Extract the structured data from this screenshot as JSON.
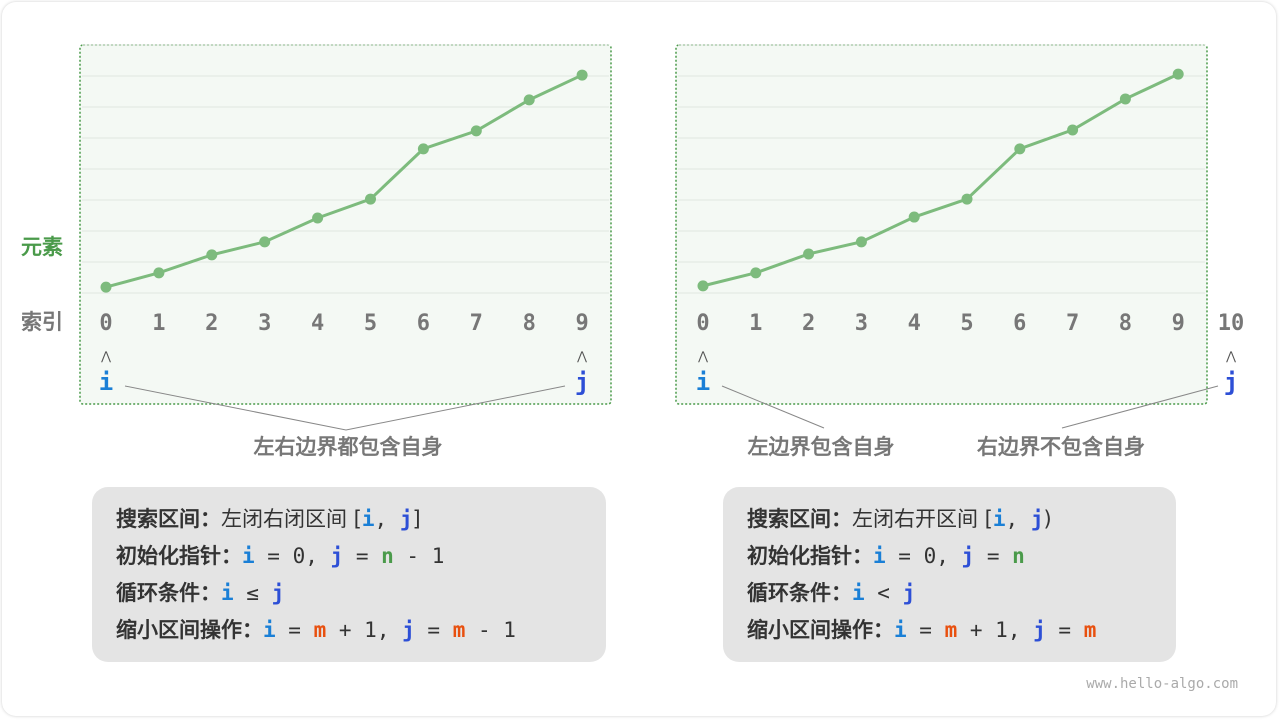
{
  "labels": {
    "element": "元素",
    "index": "索引"
  },
  "left": {
    "indices": [
      "0",
      "1",
      "2",
      "3",
      "4",
      "5",
      "6",
      "7",
      "8",
      "9"
    ],
    "values": [
      0.19,
      0.65,
      1.23,
      1.65,
      2.42,
      3.03,
      4.65,
      5.23,
      6.23,
      7.03
    ],
    "i_label": "i",
    "j_label": "j",
    "i_at": 0,
    "j_at": 9,
    "caption": "左右边界都包含自身"
  },
  "right": {
    "indices": [
      "0",
      "1",
      "2",
      "3",
      "4",
      "5",
      "6",
      "7",
      "8",
      "9",
      "10"
    ],
    "values": [
      0.23,
      0.65,
      1.26,
      1.65,
      2.45,
      3.03,
      4.65,
      5.26,
      6.26,
      7.06
    ],
    "i_label": "i",
    "j_label": "j",
    "i_at": 0,
    "j_at": 10,
    "caption_left": "左边界包含自身",
    "caption_right": "右边界不包含自身"
  },
  "box_left": {
    "l1_label": "搜索区间：",
    "l1_text": "左闭右闭区间 [",
    "l1_i": "i",
    "l1_sep": ", ",
    "l1_j": "j",
    "l1_end": "]",
    "l2_label": "初始化指针：",
    "l2_i": "i",
    "l2_a": " = 0, ",
    "l2_j": "j",
    "l2_b": " = ",
    "l2_n": "n",
    "l2_c": " - 1",
    "l3_label": "循环条件：",
    "l3_i": "i",
    "l3_op": " ≤ ",
    "l3_j": "j",
    "l4_label": "缩小区间操作：",
    "l4_i": "i",
    "l4_a": " = ",
    "l4_m": "m",
    "l4_b": " + 1, ",
    "l4_j": "j",
    "l4_c": " = ",
    "l4_m2": "m",
    "l4_d": " - 1"
  },
  "box_right": {
    "l1_label": "搜索区间：",
    "l1_text": "左闭右开区间 [",
    "l1_i": "i",
    "l1_sep": ", ",
    "l1_j": "j",
    "l1_end": ")",
    "l2_label": "初始化指针：",
    "l2_i": "i",
    "l2_a": " = 0, ",
    "l2_j": "j",
    "l2_b": " = ",
    "l2_n": "n",
    "l3_label": "循环条件：",
    "l3_i": "i",
    "l3_op": " < ",
    "l3_j": "j",
    "l4_label": "缩小区间操作：",
    "l4_i": "i",
    "l4_a": " = ",
    "l4_m": "m",
    "l4_b": " + 1, ",
    "l4_j": "j",
    "l4_c": " = ",
    "l4_m2": "m"
  },
  "watermark": "www.hello-algo.com",
  "colors": {
    "line": "#7dbb7d",
    "panel": "#f4f9f4",
    "border": "#4a9a4a",
    "i": "#1a7fd6",
    "j": "#2d4fd6",
    "n": "#4a9a4a",
    "m": "#e8500f",
    "index": "#777777"
  }
}
